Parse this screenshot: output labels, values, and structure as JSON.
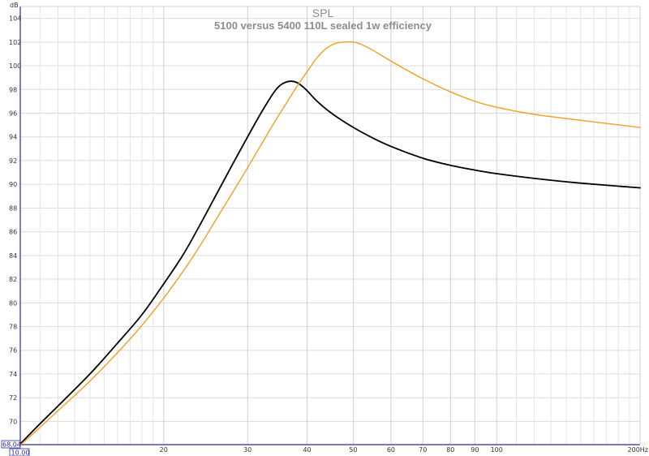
{
  "chart_data": {
    "type": "line",
    "title": "SPL",
    "subtitle": "5100 versus 5400 110L sealed 1w efficiency",
    "ylabel": "dB",
    "x_scale": "log",
    "xlim": [
      10,
      200
    ],
    "ylim": [
      68.04,
      105
    ],
    "corner_x_label": "10.00",
    "corner_y_label": "68.04",
    "x_ticks": [
      {
        "value": 20,
        "label": "20"
      },
      {
        "value": 30,
        "label": "30"
      },
      {
        "value": 40,
        "label": "40"
      },
      {
        "value": 50,
        "label": "50"
      },
      {
        "value": 60,
        "label": "60"
      },
      {
        "value": 70,
        "label": "70"
      },
      {
        "value": 80,
        "label": "80"
      },
      {
        "value": 90,
        "label": "90"
      },
      {
        "value": 100,
        "label": "100"
      },
      {
        "value": 200,
        "label": "200Hz"
      }
    ],
    "x_minor_gridlines": [
      11,
      12,
      13,
      14,
      15,
      16,
      17,
      18,
      19,
      110,
      120,
      130,
      140,
      150,
      160,
      170,
      180,
      190
    ],
    "y_ticks": [
      70,
      72,
      74,
      76,
      78,
      80,
      82,
      84,
      86,
      88,
      90,
      92,
      94,
      96,
      98,
      100,
      102,
      104
    ],
    "grid": true,
    "series": [
      {
        "color": "#000000",
        "x": [
          10,
          11,
          12,
          14,
          16,
          18,
          20,
          22,
          24,
          26,
          28,
          30,
          32,
          34,
          35,
          36,
          37,
          38,
          39,
          40,
          42,
          45,
          50,
          55,
          60,
          70,
          80,
          90,
          100,
          120,
          150,
          200
        ],
        "y": [
          68.1,
          69.8,
          71.3,
          74.0,
          76.6,
          79.0,
          81.6,
          84.1,
          86.8,
          89.4,
          91.8,
          94.0,
          96.0,
          97.7,
          98.3,
          98.6,
          98.7,
          98.6,
          98.3,
          97.9,
          97.0,
          96.0,
          94.8,
          93.9,
          93.2,
          92.2,
          91.6,
          91.2,
          90.9,
          90.5,
          90.1,
          89.7
        ]
      },
      {
        "color": "#f0a020",
        "x": [
          10,
          11,
          12,
          14,
          16,
          18,
          20,
          22,
          24,
          26,
          28,
          30,
          32,
          34,
          36,
          38,
          40,
          42,
          44,
          46,
          48,
          50,
          52,
          55,
          60,
          65,
          70,
          80,
          90,
          100,
          120,
          150,
          200
        ],
        "y": [
          68.0,
          69.5,
          70.9,
          73.4,
          75.8,
          78.1,
          80.4,
          82.7,
          85.0,
          87.3,
          89.4,
          91.4,
          93.3,
          95.1,
          96.7,
          98.2,
          99.5,
          100.7,
          101.5,
          101.9,
          102.0,
          102.0,
          101.8,
          101.3,
          100.4,
          99.6,
          98.9,
          97.8,
          97.0,
          96.5,
          95.9,
          95.4,
          94.8
        ]
      }
    ]
  }
}
